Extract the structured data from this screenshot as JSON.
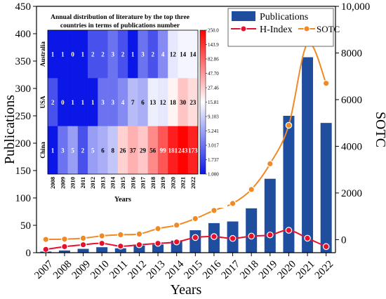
{
  "chart_data": [
    {
      "type": "bar+line",
      "x": [
        2007,
        2008,
        2009,
        2010,
        2011,
        2012,
        2013,
        2014,
        2015,
        2016,
        2017,
        2018,
        2019,
        2020,
        2021,
        2022
      ],
      "series": [
        {
          "name": "Publications",
          "type": "bar",
          "axis": "left",
          "color": "#1f4e9e",
          "values": [
            2,
            4,
            7,
            10,
            8,
            13,
            15,
            22,
            41,
            54,
            57,
            81,
            135,
            250,
            357,
            237
          ]
        },
        {
          "name": "H-Index",
          "type": "line",
          "axis": "right",
          "color": "#e8112d",
          "values": [
            -420,
            -300,
            -220,
            -160,
            -280,
            -220,
            -160,
            -100,
            90,
            130,
            50,
            150,
            200,
            400,
            60,
            -300
          ]
        },
        {
          "name": "SOTC",
          "type": "line",
          "axis": "right",
          "color": "#f08a24",
          "values": [
            10,
            20,
            60,
            160,
            210,
            240,
            470,
            620,
            900,
            1250,
            1550,
            2150,
            3250,
            4900,
            8400,
            6700
          ]
        }
      ],
      "xlabel": "Years",
      "ylabel": "Publications",
      "y2label": "SOTC",
      "ylim": [
        0,
        450
      ],
      "y2lim": [
        -560,
        10000
      ],
      "yticks": [
        0,
        50,
        100,
        150,
        200,
        250,
        300,
        350,
        400,
        450
      ],
      "y2ticks": [
        0,
        2000,
        4000,
        6000,
        8000,
        10000
      ],
      "y2tick_labels": [
        "0",
        "2000",
        "4000",
        "6000",
        "8000",
        "10,000"
      ],
      "legend": [
        "Publications",
        "H-Index",
        "SOTC"
      ],
      "legend_position": "top-right"
    },
    {
      "type": "heatmap",
      "title_lines": [
        "Annual distribution of literature by the top three",
        "countries in terms of publications number"
      ],
      "xlabel": "Years",
      "x": [
        "2008",
        "2009",
        "2010",
        "2011",
        "2012",
        "2013",
        "2014",
        "2015",
        "2016",
        "2017",
        "2018",
        "2019",
        "2020",
        "2021",
        "2022"
      ],
      "rows": [
        "Australia",
        "USA",
        "China"
      ],
      "values": [
        [
          1,
          1,
          0,
          1,
          2,
          2,
          3,
          2,
          1,
          3,
          2,
          4,
          12,
          14,
          14
        ],
        [
          2,
          0,
          1,
          1,
          1,
          3,
          3,
          4,
          7,
          6,
          13,
          12,
          18,
          30,
          23
        ],
        [
          1,
          3,
          5,
          2,
          5,
          6,
          8,
          26,
          37,
          29,
          56,
          99,
          181,
          243,
          173
        ]
      ],
      "colorbar_ticks": [
        "250.0",
        "143.9",
        "82.86",
        "47.70",
        "27.46",
        "15.81",
        "9.103",
        "5.241",
        "3.017",
        "1.737",
        "1.000"
      ],
      "colorbar_range": [
        1,
        250
      ],
      "color_low": "#0b17e6",
      "color_mid": "#ffffff",
      "color_high": "#ff0000"
    }
  ]
}
